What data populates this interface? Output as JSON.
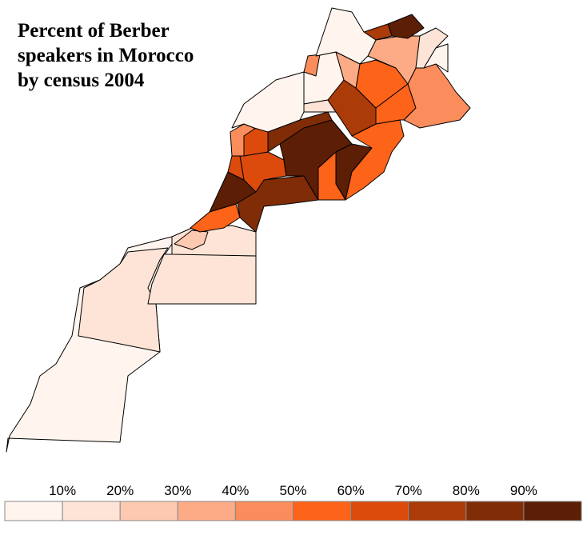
{
  "title_lines": [
    "Percent of Berber",
    "speakers in Morocco",
    "by census 2004"
  ],
  "legend": {
    "labels": [
      "10%",
      "20%",
      "30%",
      "40%",
      "50%",
      "60%",
      "70%",
      "80%",
      "90%"
    ],
    "colors": [
      "#fff5ee",
      "#fde4d6",
      "#fdcab1",
      "#fcab86",
      "#fb8c5c",
      "#fd6319",
      "#dd4b0c",
      "#ab3b08",
      "#7f2c07",
      "#5c1e04"
    ]
  }
}
